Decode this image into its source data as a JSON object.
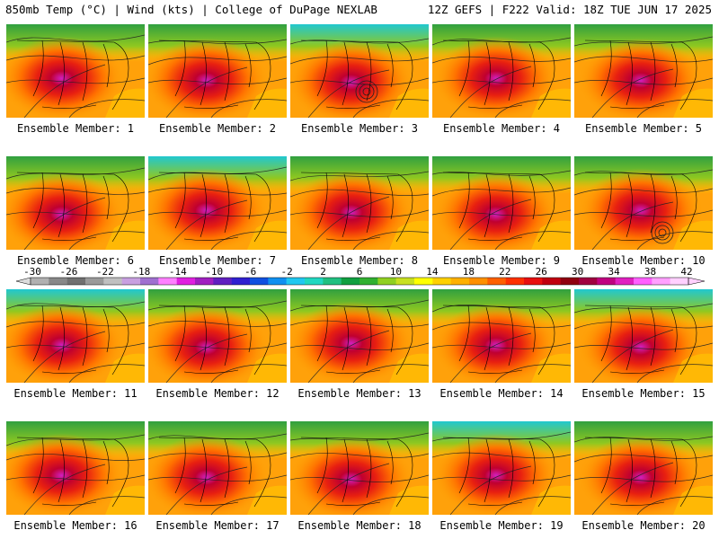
{
  "header": {
    "left": "850mb Temp (°C) | Wind (kts) | College of DuPage NEXLAB",
    "right": "12Z GEFS | F222 Valid: 18Z TUE JUN 17 2025"
  },
  "colorbar": {
    "tick_labels": [
      "-30",
      "-26",
      "-22",
      "-18",
      "-14",
      "-10",
      "-6",
      "-2",
      "2",
      "6",
      "10",
      "14",
      "18",
      "22",
      "26",
      "30",
      "34",
      "38",
      "42"
    ],
    "colors": [
      "#b0b0b0",
      "#888888",
      "#707070",
      "#9a9a9a",
      "#c0c0c0",
      "#c8a0e0",
      "#a070d0",
      "#ff80ff",
      "#e020e0",
      "#a020c0",
      "#6020c0",
      "#3020d0",
      "#1050e0",
      "#1090f0",
      "#20c8f0",
      "#20d8c0",
      "#20c080",
      "#10a040",
      "#30b030",
      "#90d020",
      "#c8e020",
      "#ffff00",
      "#ffd000",
      "#ffb000",
      "#ff9000",
      "#ff6000",
      "#ff3000",
      "#e81010",
      "#c00010",
      "#900010",
      "#a00040",
      "#c00080",
      "#e020c0",
      "#ff60ff",
      "#ffa0ff",
      "#ffd0ff"
    ]
  },
  "panels": [
    {
      "label": "Ensemble Member: 1"
    },
    {
      "label": "Ensemble Member: 2"
    },
    {
      "label": "Ensemble Member: 3"
    },
    {
      "label": "Ensemble Member: 4"
    },
    {
      "label": "Ensemble Member: 5"
    },
    {
      "label": "Ensemble Member: 6"
    },
    {
      "label": "Ensemble Member: 7"
    },
    {
      "label": "Ensemble Member: 8"
    },
    {
      "label": "Ensemble Member: 9"
    },
    {
      "label": "Ensemble Member: 10"
    },
    {
      "label": "Ensemble Member: 11"
    },
    {
      "label": "Ensemble Member: 12"
    },
    {
      "label": "Ensemble Member: 13"
    },
    {
      "label": "Ensemble Member: 14"
    },
    {
      "label": "Ensemble Member: 15"
    },
    {
      "label": "Ensemble Member: 16"
    },
    {
      "label": "Ensemble Member: 17"
    },
    {
      "label": "Ensemble Member: 18"
    },
    {
      "label": "Ensemble Member: 19"
    },
    {
      "label": "Ensemble Member: 20"
    }
  ]
}
